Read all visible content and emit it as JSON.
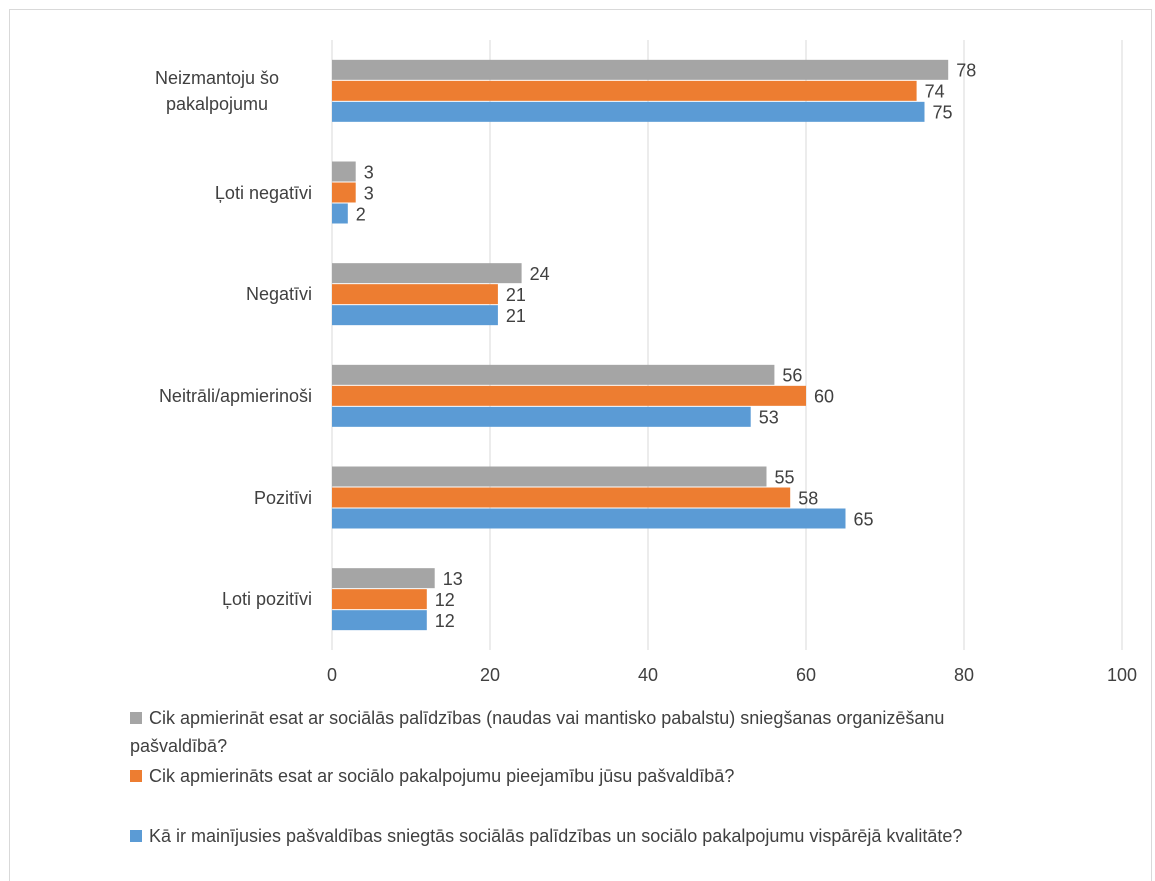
{
  "chart_data": {
    "type": "hbar",
    "categories": [
      "Neizmantoju šo pakalpojumu",
      "Ļoti negatīvi",
      "Negatīvi",
      "Neitrāli/apmierinoši",
      "Pozitīvi",
      "Ļoti pozitīvi"
    ],
    "series": [
      {
        "name": "Cik apmierināt esat ar sociālās palīdzības (naudas vai mantisko pabalstu) sniegšanas organizēšanu pašvaldībā?",
        "color": "#a5a5a5",
        "values": [
          78,
          3,
          24,
          56,
          55,
          13
        ]
      },
      {
        "name": "Cik apmierināts esat ar sociālo pakalpojumu pieejamību jūsu pašvaldībā?",
        "color": "#ed7d31",
        "values": [
          74,
          3,
          21,
          60,
          58,
          12
        ]
      },
      {
        "name": "Kā ir mainījusies pašvaldības sniegtās sociālās palīdzības un sociālo pakalpojumu vispārējā kvalitāte?",
        "color": "#5b9bd5",
        "values": [
          75,
          2,
          21,
          53,
          65,
          12
        ]
      }
    ],
    "xlim": [
      0,
      100
    ],
    "xticks": [
      0,
      20,
      40,
      60,
      80,
      100
    ],
    "grid": true,
    "legend": "bottom"
  }
}
